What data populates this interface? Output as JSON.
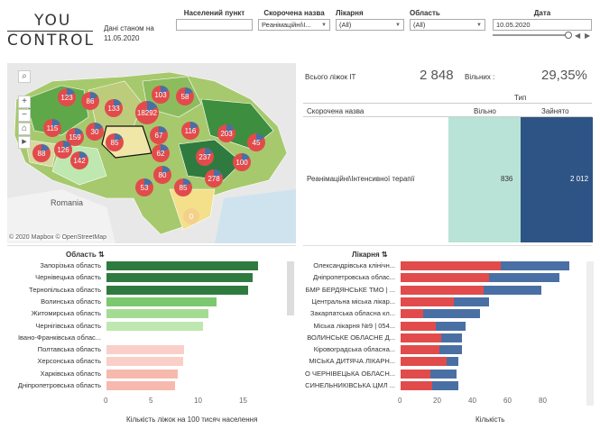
{
  "logo": {
    "line1": "YOU",
    "line2": "CONTROL"
  },
  "as_of": "Дані станом на 11.05.2020",
  "filters": {
    "settlement": {
      "label": "Населений пункт",
      "value": ""
    },
    "short_name": {
      "label": "Скорочена назва",
      "value": "Реанімаційні\\І..."
    },
    "hospital": {
      "label": "Лікарня",
      "value": "(All)"
    },
    "region": {
      "label": "Область",
      "value": "(All)"
    },
    "date": {
      "label": "Дата",
      "value": "10.05.2020"
    }
  },
  "map": {
    "attribution": "© 2020 Mapbox © OpenStreetMap",
    "country_label": "Romania",
    "markers": [
      "123",
      "86",
      "133",
      "103",
      "58",
      "115",
      "159",
      "30",
      "85",
      "18292",
      "67",
      "116",
      "203",
      "45",
      "88",
      "126",
      "142",
      "62",
      "237",
      "100",
      "80",
      "53",
      "85",
      "278",
      "0"
    ]
  },
  "kpi": {
    "total_label": "Всього ліжок ІТ",
    "total_value": "2 848",
    "free_label": "Вільних :",
    "free_pct": "29,35%"
  },
  "table": {
    "type_header": "Тип",
    "name_header": "Скорочена назва",
    "col_free": "Вільно",
    "col_busy": "Зайнято",
    "row_name": "Реанімаційні\\Інтенсивної терапії",
    "free": "836",
    "busy": "2 012"
  },
  "colors": {
    "free": "#b9e3d6",
    "busy": "#2e5485",
    "red": "#e24b4b",
    "blue": "#4a6fa5"
  },
  "region_chart": {
    "title": "Область",
    "xlabel": "Кількість ліжок на 100 тисяч населення",
    "ticks": [
      "0",
      "5",
      "10",
      "15"
    ],
    "rows": [
      {
        "name": "Запорізька область",
        "value": 16.8,
        "color": "#2f7b3f"
      },
      {
        "name": "Чернівецька область",
        "value": 16.2,
        "color": "#2f7b3f"
      },
      {
        "name": "Тернопільська область",
        "value": 15.7,
        "color": "#2f7b3f"
      },
      {
        "name": "Волинська область",
        "value": 12.2,
        "color": "#7cc86f"
      },
      {
        "name": "Житомирська область",
        "value": 11.3,
        "color": "#a4db93"
      },
      {
        "name": "Чернігівська область",
        "value": 10.7,
        "color": "#bfe7b0"
      },
      {
        "name": "Івано-Франківська облас...",
        "value": 0,
        "color": "#eeeeee"
      },
      {
        "name": "Полтавська область",
        "value": 8.6,
        "color": "#f9cfc8"
      },
      {
        "name": "Херсонська область",
        "value": 8.5,
        "color": "#f9cfc8"
      },
      {
        "name": "Харківська область",
        "value": 7.9,
        "color": "#f7b9ad"
      },
      {
        "name": "Дніпропетровська область",
        "value": 7.6,
        "color": "#f7b9ad"
      }
    ]
  },
  "hospital_chart": {
    "title": "Лікарня",
    "xlabel": "Кількість",
    "ticks": [
      "0",
      "20",
      "40",
      "60",
      "80"
    ],
    "rows": [
      {
        "name": "Олександрівська клінічн...",
        "busy": 57,
        "free": 39
      },
      {
        "name": "Дніпропетровська облас...",
        "busy": 50,
        "free": 40
      },
      {
        "name": "БМР БЕРДЯНСЬКЕ ТМО | ...",
        "busy": 47,
        "free": 33
      },
      {
        "name": "Центральна міська лікар...",
        "busy": 30,
        "free": 20
      },
      {
        "name": "Закарпатська обласна кл...",
        "busy": 13,
        "free": 32
      },
      {
        "name": "Міська лікарня №9 | 054...",
        "busy": 20,
        "free": 17
      },
      {
        "name": "ВОЛИНСЬКЕ ОБЛАСНЕ Д...",
        "busy": 23,
        "free": 12
      },
      {
        "name": "Кіровоградська обласна...",
        "busy": 22,
        "free": 13
      },
      {
        "name": "МІСЬКА ДИТЯЧА ЛІКАРН...",
        "busy": 26,
        "free": 7
      },
      {
        "name": "О ЧЕРНІВЕЦЬКА ОБЛАСН...",
        "busy": 17,
        "free": 15
      },
      {
        "name": "СИНЕЛЬНИКІВСЬКА ЦМЛ ...",
        "busy": 18,
        "free": 15
      }
    ]
  }
}
